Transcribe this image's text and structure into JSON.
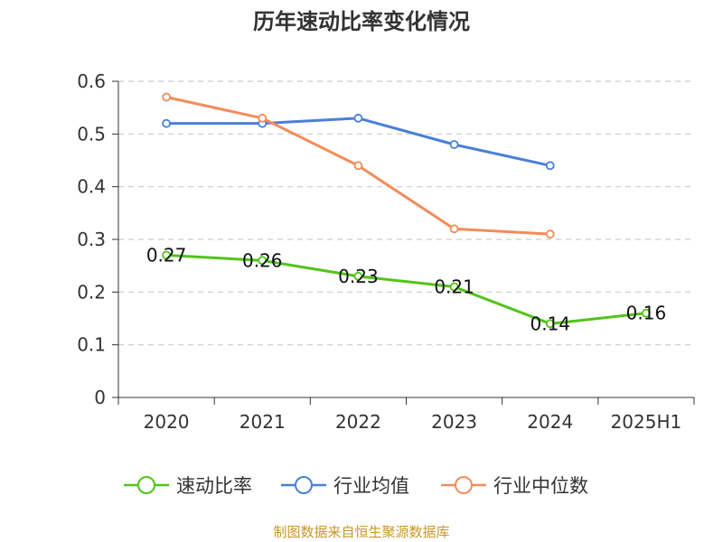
{
  "chart_data": {
    "type": "line",
    "title": "历年速动比率变化情况",
    "categories": [
      "2020",
      "2021",
      "2022",
      "2023",
      "2024",
      "2025H1"
    ],
    "y_ticks": [
      "0",
      "0.1",
      "0.2",
      "0.3",
      "0.4",
      "0.5",
      "0.6"
    ],
    "ylim": [
      0,
      0.6
    ],
    "grid": true,
    "legend_position": "bottom",
    "series": [
      {
        "name": "速动比率",
        "color": "#52c41a",
        "values": [
          0.27,
          0.26,
          0.23,
          0.21,
          0.14,
          0.16
        ],
        "labels": [
          "0.27",
          "0.26",
          "0.23",
          "0.21",
          "0.14",
          "0.16"
        ]
      },
      {
        "name": "行业均值",
        "color": "#4a7fd9",
        "values": [
          0.52,
          0.52,
          0.53,
          0.48,
          0.44,
          null
        ]
      },
      {
        "name": "行业中位数",
        "color": "#f28c5a",
        "values": [
          0.57,
          0.53,
          0.44,
          0.32,
          0.31,
          null
        ]
      }
    ]
  },
  "source": "制图数据来自恒生聚源数据库"
}
